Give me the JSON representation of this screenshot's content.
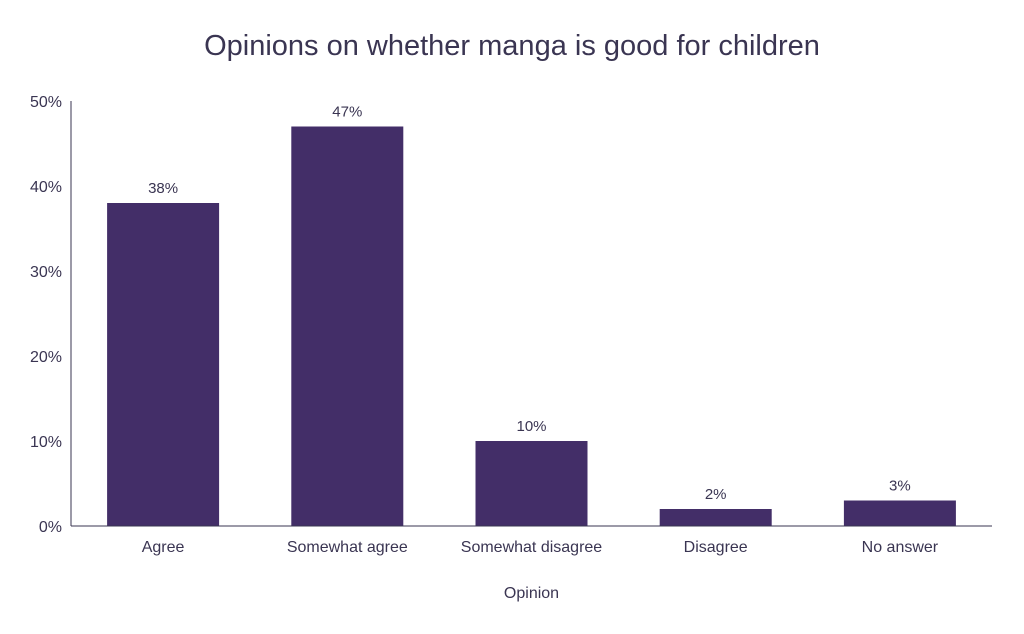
{
  "chart_data": {
    "type": "bar",
    "title": "Opinions on whether manga is good for children",
    "xlabel": "Opinion",
    "ylabel": "",
    "categories": [
      "Agree",
      "Somewhat agree",
      "Somewhat disagree",
      "Disagree",
      "No answer"
    ],
    "values": [
      38,
      47,
      10,
      2,
      3
    ],
    "value_labels": [
      "38%",
      "47%",
      "10%",
      "2%",
      "3%"
    ],
    "ylim": [
      0,
      50
    ],
    "yticks": [
      0,
      10,
      20,
      30,
      40,
      50
    ],
    "ytick_labels": [
      "0%",
      "10%",
      "20%",
      "30%",
      "40%",
      "50%"
    ],
    "grid": false,
    "legend": "none",
    "colors": {
      "bar": "#432e68",
      "text": "#3a3552",
      "axis": "#3a3552"
    }
  }
}
